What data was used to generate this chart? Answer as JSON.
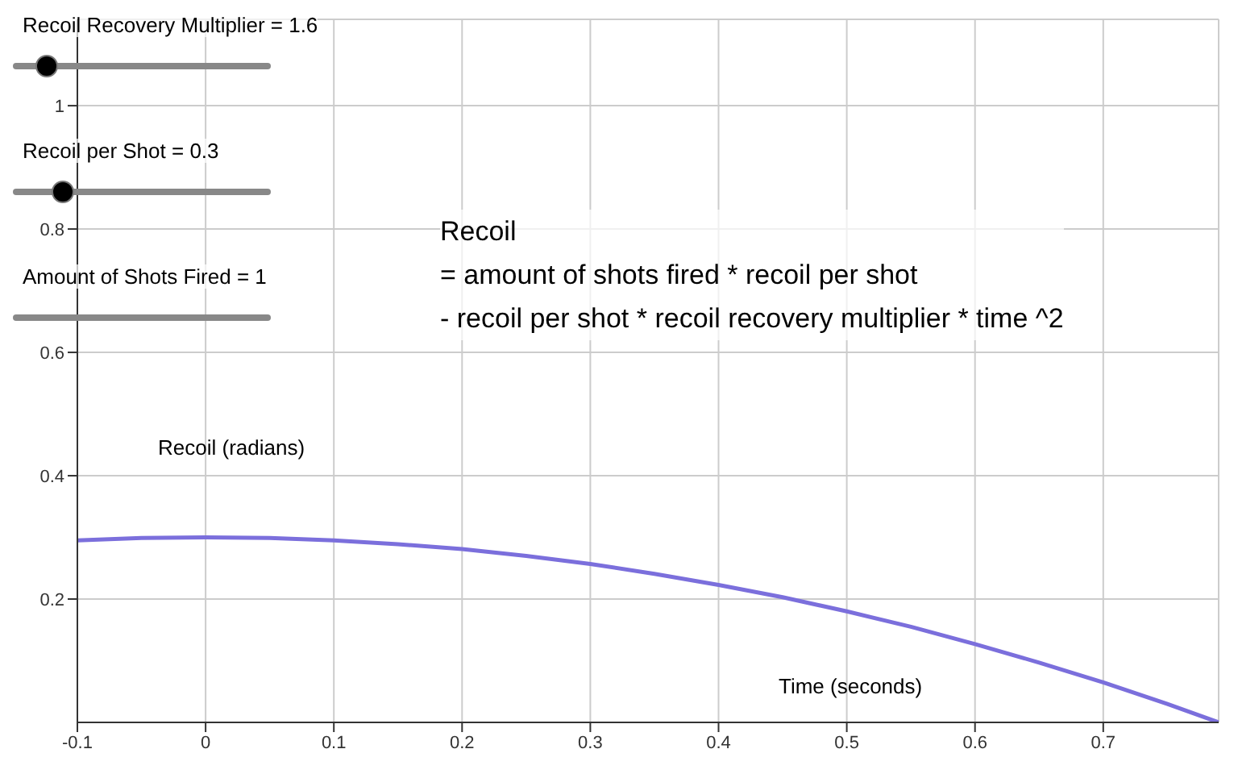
{
  "chart_data": {
    "type": "line",
    "xlabel": "Time (seconds)",
    "ylabel": "Recoil (radians)",
    "x": [
      -0.1,
      -0.05,
      0,
      0.05,
      0.1,
      0.15,
      0.2,
      0.25,
      0.3,
      0.35,
      0.4,
      0.45,
      0.5,
      0.55,
      0.6,
      0.65,
      0.7,
      0.75,
      0.79
    ],
    "series": [
      {
        "color": "#7b6fdc",
        "values": [
          0.295,
          0.299,
          0.3,
          0.299,
          0.295,
          0.289,
          0.281,
          0.27,
          0.257,
          0.241,
          0.223,
          0.203,
          0.18,
          0.155,
          0.127,
          0.097,
          0.065,
          0.03,
          0.0
        ]
      }
    ],
    "xlim": [
      -0.1,
      0.79
    ],
    "ylim": [
      0,
      1.14
    ],
    "xticks": [
      -0.1,
      0,
      0.1,
      0.2,
      0.3,
      0.4,
      0.5,
      0.6,
      0.7
    ],
    "yticks": [
      0.2,
      0.4,
      0.6,
      0.8,
      1
    ],
    "grid": true,
    "marker": "none",
    "line_style": "solid",
    "annotations": [
      "Recoil Recovery Multiplier = 1.6",
      "Recoil per Shot = 0.3",
      "Amount of Shots Fired = 1",
      "Recoil",
      "= amount of shots fired * recoil per shot",
      "- recoil per shot * recoil recovery multiplier * time ^2"
    ]
  }
}
